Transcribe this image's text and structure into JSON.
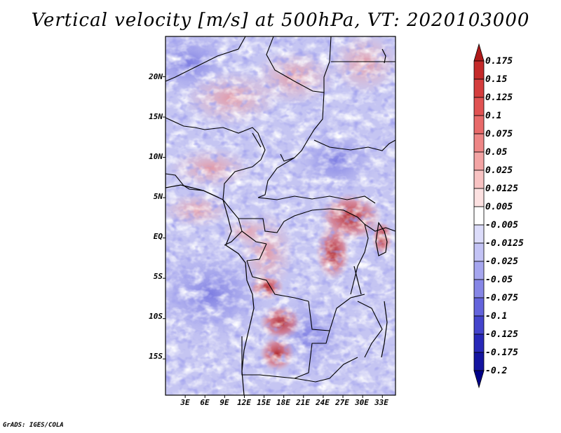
{
  "title": "Vertical velocity [m/s] at 500hPa, VT: 2020103000",
  "footer": "GrADS: IGES/COLA",
  "map": {
    "lat_ticks": [
      "20N",
      "15N",
      "10N",
      "5N",
      "EQ",
      "5S",
      "10S",
      "15S"
    ],
    "lon_ticks": [
      "3E",
      "6E",
      "9E",
      "12E",
      "15E",
      "18E",
      "21E",
      "24E",
      "27E",
      "30E",
      "33E"
    ],
    "lon_range": [
      0,
      35
    ],
    "lat_range": [
      -19.5,
      25
    ]
  },
  "colorbar": {
    "labels": [
      "0.175",
      "0.15",
      "0.125",
      "0.1",
      "0.075",
      "0.05",
      "0.025",
      "0.0125",
      "0.005",
      "-0.005",
      "-0.0125",
      "-0.025",
      "-0.05",
      "-0.075",
      "-0.1",
      "-0.125",
      "-0.175",
      "-0.2"
    ],
    "colors": [
      "#b01a1a",
      "#c42a2a",
      "#d43d3d",
      "#e05252",
      "#e86a6a",
      "#ee8686",
      "#f3a4a4",
      "#f8c3c3",
      "#fce1e1",
      "#ffffff",
      "#dcdcfa",
      "#c3c3f5",
      "#a6a6ef",
      "#8686e6",
      "#6464dc",
      "#4444cc",
      "#2828b8",
      "#1414a0",
      "#000088"
    ]
  },
  "chart_data": {
    "type": "heatmap",
    "title": "Vertical velocity [m/s] at 500hPa, VT: 2020103000",
    "variable": "Vertical velocity",
    "units": "m/s",
    "level": "500hPa",
    "valid_time": "2020103000",
    "x_ticks": [
      "3E",
      "6E",
      "9E",
      "12E",
      "15E",
      "18E",
      "21E",
      "24E",
      "27E",
      "30E",
      "33E"
    ],
    "y_ticks": [
      "20N",
      "15N",
      "10N",
      "5N",
      "EQ",
      "5S",
      "10S",
      "15S"
    ],
    "color_levels": [
      0.175,
      0.15,
      0.125,
      0.1,
      0.075,
      0.05,
      0.025,
      0.0125,
      0.005,
      -0.005,
      -0.0125,
      -0.025,
      -0.05,
      -0.075,
      -0.1,
      -0.125,
      -0.175,
      -0.2
    ]
  }
}
